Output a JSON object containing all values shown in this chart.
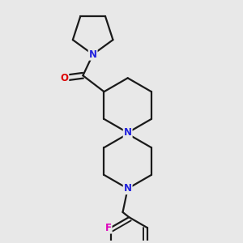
{
  "background_color": "#e8e8e8",
  "bond_color": "#1a1a1a",
  "bond_width": 1.6,
  "N_color": "#2222dd",
  "O_color": "#dd0000",
  "F_color": "#dd00bb",
  "font_size_atom": 8.5,
  "figsize": [
    3.0,
    3.0
  ],
  "dpi": 100,
  "xlim": [
    0.05,
    0.95
  ],
  "ylim": [
    0.02,
    0.98
  ]
}
